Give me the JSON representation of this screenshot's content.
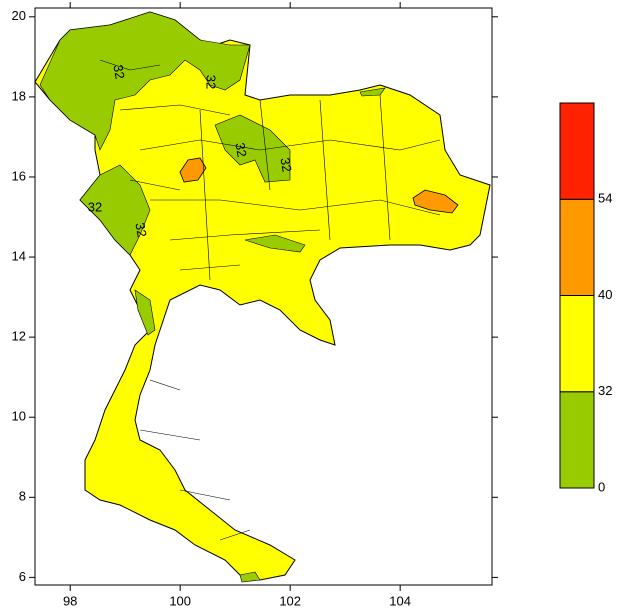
{
  "map": {
    "xlim": [
      97.36,
      105.67
    ],
    "ylim": [
      5.81,
      20.22
    ],
    "xticks": [
      98,
      100,
      102,
      104
    ],
    "yticks": [
      6,
      8,
      10,
      12,
      14,
      16,
      18,
      20
    ],
    "contour_labels": [
      "32",
      "32",
      "32",
      "32",
      "32",
      "32"
    ],
    "colorbar": {
      "levels": [
        0,
        32,
        40,
        54
      ],
      "colors": [
        "#99cc00",
        "#ffff00",
        "#ff9900",
        "#ff2200"
      ]
    }
  }
}
